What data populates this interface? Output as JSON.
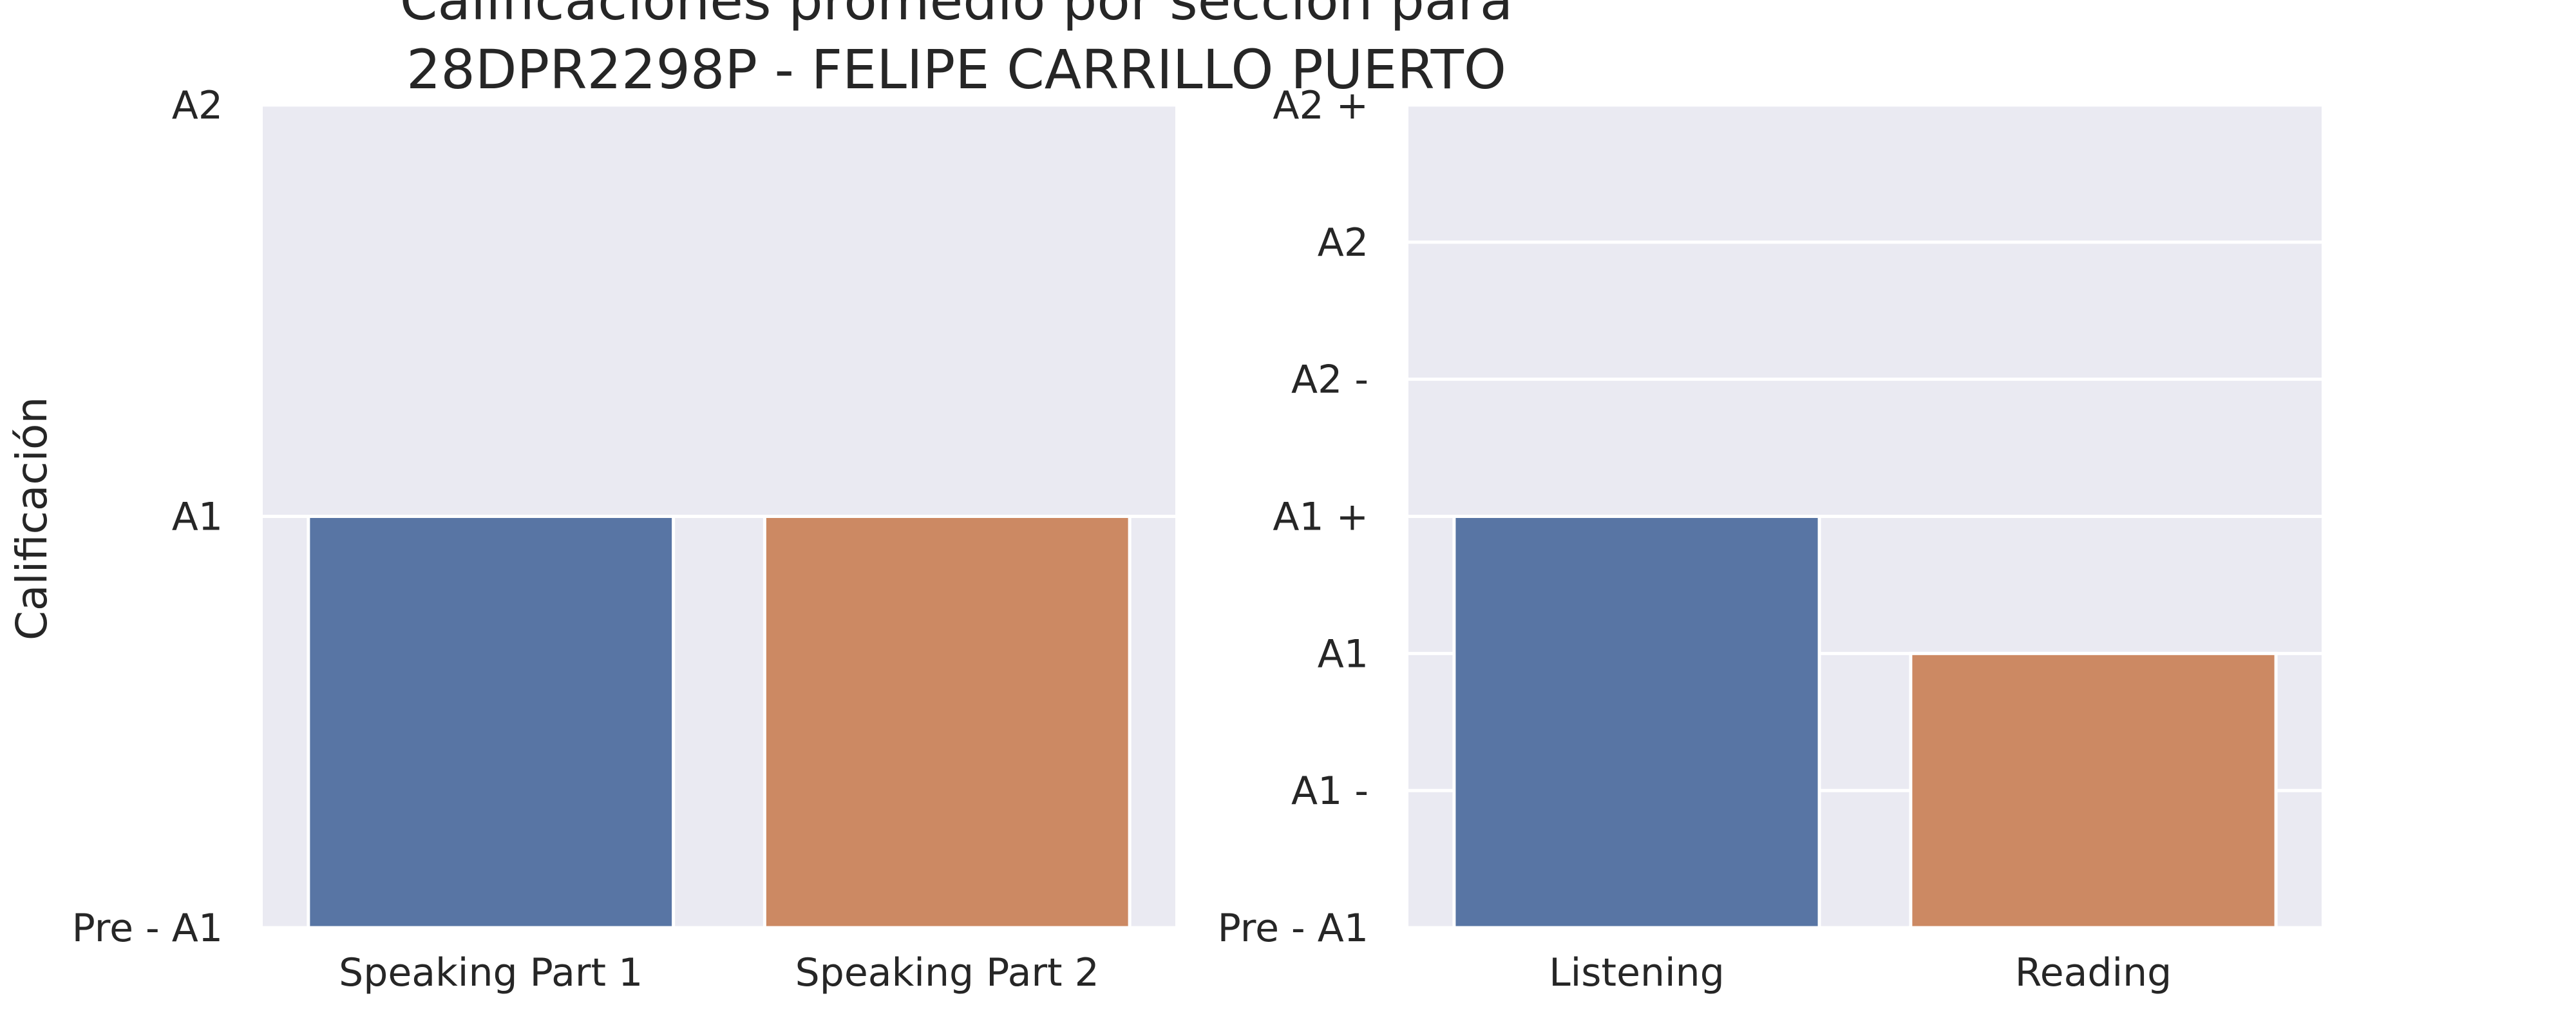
{
  "chart_data": {
    "title_lines": [
      "Calificaciones promedio por sección para",
      "28DPR2298P - FELIPE CARRILLO PUERTO"
    ],
    "ylabel": "Calificación",
    "colors": {
      "series1": "#5875a4",
      "series2": "#cc8963",
      "background": "#eaeaf2",
      "grid": "#ffffff"
    },
    "panels": [
      {
        "type": "bar",
        "categories": [
          "Speaking Part 1",
          "Speaking Part 2"
        ],
        "values": [
          1,
          1
        ],
        "ytick_labels": [
          "Pre - A1",
          "A1",
          "A2"
        ],
        "ylim": [
          0,
          2
        ]
      },
      {
        "type": "bar",
        "categories": [
          "Listening",
          "Reading"
        ],
        "values": [
          3,
          2
        ],
        "ytick_labels": [
          "Pre - A1",
          "A1 -",
          "A1",
          "A1 +",
          "A2 -",
          "A2",
          "A2 +"
        ],
        "ylim": [
          0,
          6
        ]
      }
    ]
  }
}
